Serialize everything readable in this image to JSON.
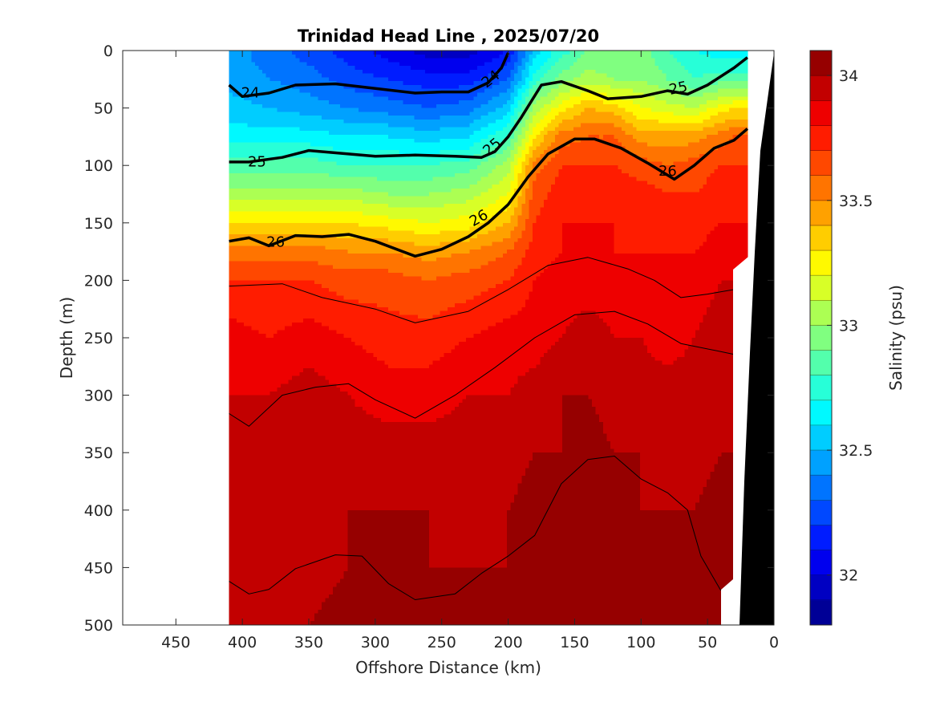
{
  "chart_data": {
    "type": "heatmap",
    "title": "Trinidad Head Line , 2025/07/20",
    "xlabel": "Offshore Distance (km)",
    "ylabel": "Depth (m)",
    "xlim": [
      490,
      0
    ],
    "ylim": [
      500,
      0
    ],
    "x_reversed": true,
    "y_reversed": true,
    "x_ticks": [
      450,
      400,
      350,
      300,
      250,
      200,
      150,
      100,
      50,
      0
    ],
    "y_ticks": [
      0,
      50,
      100,
      150,
      200,
      250,
      300,
      350,
      400,
      450,
      500
    ],
    "colorbar": {
      "label": "Salinity (psu)",
      "range": [
        31.8,
        34.1
      ],
      "ticks": [
        32,
        32.5,
        33,
        33.5,
        34
      ]
    },
    "data_extent_km": [
      410,
      20
    ],
    "distance_km": [
      410,
      380,
      350,
      320,
      290,
      260,
      230,
      200,
      180,
      160,
      140,
      120,
      100,
      80,
      60,
      40,
      30
    ],
    "depth_m": [
      0,
      25,
      50,
      75,
      100,
      125,
      150,
      175,
      200,
      250,
      300,
      350,
      400,
      450,
      500
    ],
    "salinity_psu": [
      [
        32.45,
        32.35,
        32.25,
        32.15,
        32.05,
        31.95,
        31.95,
        32.1,
        32.55,
        32.75,
        32.9,
        32.9,
        32.95,
        32.8,
        32.7,
        32.65,
        32.65
      ],
      [
        32.45,
        32.4,
        32.35,
        32.25,
        32.2,
        32.15,
        32.15,
        32.3,
        32.75,
        32.95,
        33.05,
        33.0,
        33.0,
        32.9,
        32.8,
        32.85,
        32.85
      ],
      [
        32.55,
        32.5,
        32.45,
        32.4,
        32.35,
        32.3,
        32.35,
        32.55,
        33.05,
        33.25,
        33.4,
        33.35,
        33.2,
        33.15,
        33.1,
        33.25,
        33.3
      ],
      [
        32.65,
        32.65,
        32.65,
        32.6,
        32.6,
        32.55,
        32.6,
        32.8,
        33.3,
        33.55,
        33.6,
        33.6,
        33.45,
        33.45,
        33.45,
        33.55,
        33.6
      ],
      [
        32.85,
        32.85,
        32.85,
        32.8,
        32.8,
        32.8,
        32.85,
        33.05,
        33.55,
        33.7,
        33.7,
        33.7,
        33.65,
        33.6,
        33.65,
        33.7,
        33.7
      ],
      [
        33.05,
        33.05,
        33.05,
        33.05,
        33.0,
        33.0,
        33.05,
        33.2,
        33.65,
        33.75,
        33.75,
        33.75,
        33.75,
        33.7,
        33.7,
        33.75,
        33.75
      ],
      [
        33.3,
        33.3,
        33.3,
        33.3,
        33.25,
        33.2,
        33.25,
        33.4,
        33.7,
        33.8,
        33.8,
        33.8,
        33.8,
        33.75,
        33.75,
        33.8,
        33.8
      ],
      [
        33.55,
        33.55,
        33.55,
        33.5,
        33.5,
        33.45,
        33.5,
        33.6,
        33.75,
        33.8,
        33.85,
        33.8,
        33.8,
        33.8,
        33.8,
        33.85,
        33.85
      ],
      [
        33.7,
        33.7,
        33.7,
        33.65,
        33.65,
        33.6,
        33.65,
        33.7,
        33.8,
        33.85,
        33.85,
        33.85,
        33.85,
        33.8,
        33.85,
        33.9,
        33.9
      ],
      [
        33.85,
        33.8,
        33.85,
        33.8,
        33.75,
        33.75,
        33.8,
        33.85,
        33.85,
        33.9,
        33.95,
        33.9,
        33.9,
        33.85,
        33.9,
        33.95,
        33.95
      ],
      [
        33.9,
        33.9,
        33.95,
        33.9,
        33.85,
        33.85,
        33.9,
        33.9,
        33.95,
        34.0,
        34.0,
        33.95,
        33.95,
        33.95,
        33.95,
        34.0,
        34.0
      ],
      [
        33.95,
        33.95,
        33.9,
        33.95,
        33.95,
        33.95,
        33.95,
        33.95,
        34.0,
        34.0,
        34.05,
        34.0,
        34.0,
        33.95,
        33.95,
        34.0,
        34.0
      ],
      [
        34.0,
        33.95,
        33.95,
        34.0,
        34.0,
        34.0,
        33.95,
        34.0,
        34.05,
        34.05,
        34.05,
        34.05,
        34.0,
        34.0,
        34.0,
        34.05,
        34.05
      ],
      [
        34.0,
        34.0,
        33.95,
        34.0,
        34.05,
        34.0,
        34.0,
        34.0,
        34.05,
        34.1,
        34.1,
        34.05,
        34.05,
        34.05,
        34.0,
        34.05,
        34.05
      ],
      [
        34.0,
        34.0,
        34.0,
        34.05,
        34.05,
        34.05,
        34.05,
        34.05,
        34.1,
        34.1,
        34.1,
        34.1,
        34.1,
        34.05,
        34.05,
        34.05,
        34.05
      ]
    ],
    "density_contours": [
      {
        "level": "24",
        "label": "24",
        "bold": true,
        "points": [
          [
            410,
            30
          ],
          [
            400,
            40
          ],
          [
            380,
            37
          ],
          [
            360,
            30
          ],
          [
            330,
            29
          ],
          [
            300,
            33
          ],
          [
            270,
            37
          ],
          [
            250,
            36
          ],
          [
            230,
            36
          ],
          [
            215,
            28
          ],
          [
            205,
            15
          ],
          [
            200,
            2
          ]
        ]
      },
      {
        "level": "25",
        "label": "25",
        "bold": true,
        "points": [
          [
            410,
            97
          ],
          [
            395,
            97
          ],
          [
            370,
            93
          ],
          [
            350,
            87
          ],
          [
            300,
            92
          ],
          [
            270,
            91
          ],
          [
            240,
            92
          ],
          [
            220,
            93
          ],
          [
            210,
            88
          ],
          [
            200,
            75
          ],
          [
            190,
            58
          ],
          [
            175,
            30
          ],
          [
            160,
            27
          ],
          [
            140,
            35
          ],
          [
            125,
            42
          ],
          [
            100,
            40
          ],
          [
            80,
            35
          ],
          [
            65,
            38
          ],
          [
            50,
            30
          ],
          [
            30,
            15
          ],
          [
            20,
            6
          ]
        ]
      },
      {
        "level": "26",
        "label": "26",
        "bold": true,
        "points": [
          [
            410,
            166
          ],
          [
            395,
            163
          ],
          [
            380,
            170
          ],
          [
            360,
            161
          ],
          [
            340,
            162
          ],
          [
            320,
            160
          ],
          [
            300,
            166
          ],
          [
            270,
            179
          ],
          [
            250,
            173
          ],
          [
            230,
            162
          ],
          [
            215,
            150
          ],
          [
            200,
            134
          ],
          [
            185,
            110
          ],
          [
            170,
            90
          ],
          [
            150,
            77
          ],
          [
            135,
            77
          ],
          [
            115,
            85
          ],
          [
            95,
            98
          ],
          [
            75,
            112
          ],
          [
            60,
            100
          ],
          [
            45,
            85
          ],
          [
            30,
            78
          ],
          [
            20,
            68
          ]
        ]
      },
      {
        "level": "26.5",
        "label": "",
        "bold": false,
        "points": [
          [
            410,
            205
          ],
          [
            370,
            203
          ],
          [
            340,
            215
          ],
          [
            300,
            225
          ],
          [
            270,
            237
          ],
          [
            230,
            227
          ],
          [
            200,
            208
          ],
          [
            170,
            187
          ],
          [
            140,
            180
          ],
          [
            110,
            190
          ],
          [
            90,
            200
          ],
          [
            70,
            215
          ],
          [
            50,
            212
          ],
          [
            30,
            208
          ],
          [
            20,
            205
          ]
        ]
      },
      {
        "level": "26.7",
        "label": "",
        "bold": false,
        "points": [
          [
            410,
            316
          ],
          [
            395,
            327
          ],
          [
            370,
            300
          ],
          [
            345,
            293
          ],
          [
            320,
            290
          ],
          [
            300,
            304
          ],
          [
            270,
            320
          ],
          [
            240,
            300
          ],
          [
            210,
            276
          ],
          [
            180,
            250
          ],
          [
            150,
            230
          ],
          [
            120,
            227
          ],
          [
            95,
            238
          ],
          [
            70,
            255
          ],
          [
            40,
            262
          ],
          [
            20,
            267
          ]
        ]
      },
      {
        "level": "26.8",
        "label": "",
        "bold": false,
        "points": [
          [
            410,
            462
          ],
          [
            395,
            473
          ],
          [
            380,
            469
          ],
          [
            360,
            451
          ],
          [
            330,
            439
          ],
          [
            310,
            440
          ],
          [
            290,
            464
          ],
          [
            270,
            478
          ],
          [
            240,
            473
          ],
          [
            220,
            455
          ],
          [
            200,
            440
          ],
          [
            180,
            422
          ],
          [
            160,
            377
          ],
          [
            140,
            356
          ],
          [
            120,
            353
          ],
          [
            100,
            373
          ],
          [
            80,
            385
          ],
          [
            65,
            400
          ],
          [
            55,
            440
          ],
          [
            40,
            470
          ]
        ]
      }
    ]
  }
}
